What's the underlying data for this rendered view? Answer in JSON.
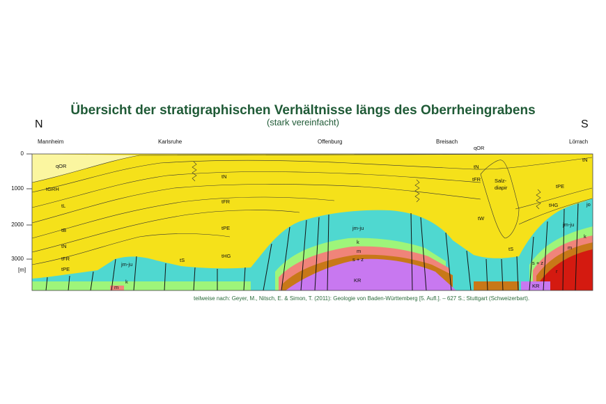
{
  "title": "Übersicht der stratigraphischen Verhältnisse längs des Oberrheingrabens",
  "subtitle": "(stark vereinfacht)",
  "direction_left": "N",
  "direction_right": "S",
  "towns": [
    "Mannheim",
    "Karlsruhe",
    "Offenburg",
    "Breisach",
    "Lörrach"
  ],
  "y_axis": {
    "unit": "[m]",
    "ticks": [
      "0",
      "1000",
      "2000",
      "3000"
    ]
  },
  "unit_labels": {
    "qOR_left": "qOR",
    "qOR_right": "qOR",
    "tGRH": "tGRH",
    "tL": "tL",
    "tB": "tB",
    "tN_left": "tN",
    "tFR_left": "tFR",
    "tPE_left": "tPE",
    "tN_mid": "tN",
    "tFR_mid": "tFR",
    "tPE_mid": "tPE",
    "tHG_mid": "tHG",
    "tS_mid": "tS",
    "jmju_left": "jm-ju",
    "k_left": "k",
    "m_left": "m",
    "jmju_center": "jm-ju",
    "k_center": "k",
    "m_center": "m",
    "sz_center": "s + z",
    "KR_center": "KR",
    "tN_right": "tN",
    "tFR_right": "tFR",
    "tW": "tW",
    "salz": "Salz-",
    "diapir": "diapir",
    "tS_right": "tS",
    "tN_far": "tN",
    "tPE_far": "tPE",
    "tHG_far": "tHG",
    "jo": "jo",
    "jmju_right": "jm-ju",
    "k_right": "k",
    "m_right": "m",
    "sz_right": "s + z",
    "r": "r",
    "KR_right": "KR"
  },
  "colors": {
    "tertiary": "#f5e11a",
    "quaternary": "#fbf6a0",
    "jura": "#4fd8d0",
    "keuper": "#9ef57a",
    "muschelkalk": "#f0847a",
    "buntsandstein": "#c87818",
    "rotliegend": "#d41a10",
    "crystalline": "#c878f0",
    "title": "#1f5a36"
  },
  "source": "teilweise nach: Geyer, M., Nitsch, E. & Simon, T. (2011): Geologie von Baden-Württemberg [5. Aufl.]. – 627 S.; Stuttgart (Schweizerbart)."
}
